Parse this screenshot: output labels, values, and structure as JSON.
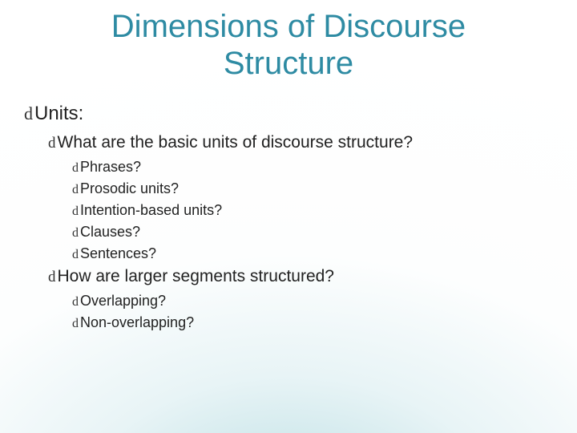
{
  "title_color": "#2e8ba3",
  "text_color": "#222222",
  "background_gradient": {
    "type": "radial",
    "stops": [
      "#b8dde2",
      "#e8f4f6",
      "#fdfefe",
      "#ffffff"
    ]
  },
  "bullet_glyph": "d",
  "font_family_body": "Arial",
  "font_family_bullet": "Segoe Script",
  "title": "Dimensions of Discourse Structure",
  "title_fontsize": 40,
  "fontsizes": {
    "lvl1": 24,
    "lvl2": 21,
    "lvl3": 18
  },
  "content": {
    "units": {
      "label": "Units:",
      "q_basic": "What are the basic units of discourse structure?",
      "basic_items": {
        "phrases": "Phrases?",
        "prosodic": "Prosodic units?",
        "intention": "Intention-based units?",
        "clauses": "Clauses?",
        "sentences": "Sentences?"
      },
      "q_larger": "How are larger segments structured?",
      "larger_items": {
        "overlapping": "Overlapping?",
        "nonoverlapping": "Non-overlapping?"
      }
    }
  }
}
